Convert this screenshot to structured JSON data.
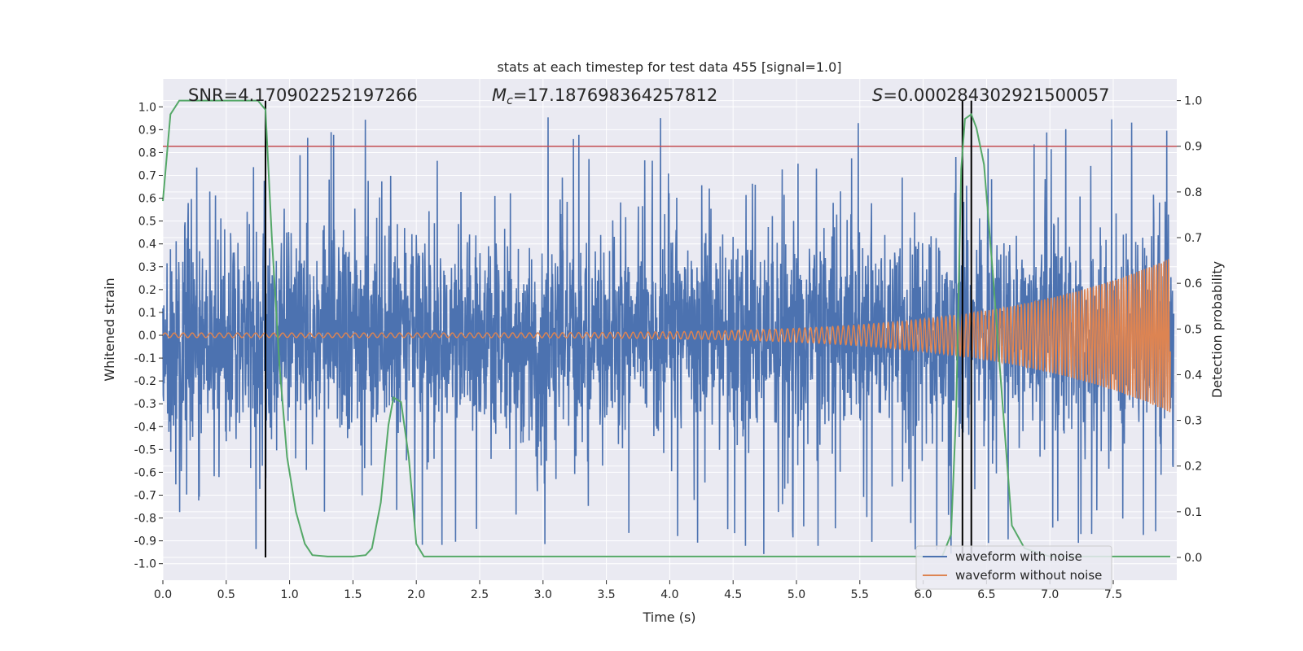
{
  "chart_data": {
    "type": "line",
    "title": "stats at each timestep for test data 455 [signal=1.0]",
    "xlabel": "Time (s)",
    "ylabel": "Whitened strain",
    "y2label": "Detection probability",
    "xlim": [
      0.0,
      8.0
    ],
    "ylim": [
      -1.1,
      1.1
    ],
    "y2lim": [
      -0.05,
      1.05
    ],
    "x_ticks": [
      0.0,
      0.5,
      1.0,
      1.5,
      2.0,
      2.5,
      3.0,
      3.5,
      4.0,
      4.5,
      5.0,
      5.5,
      6.0,
      6.5,
      7.0,
      7.5
    ],
    "x_tick_labels": [
      "0.0",
      "0.5",
      "1.0",
      "1.5",
      "2.0",
      "2.5",
      "3.0",
      "3.5",
      "4.0",
      "4.5",
      "5.0",
      "5.5",
      "6.0",
      "6.5",
      "7.0",
      "7.5"
    ],
    "y_ticks": [
      -1.0,
      -0.9,
      -0.8,
      -0.7,
      -0.6,
      -0.5,
      -0.4,
      -0.3,
      -0.2,
      -0.1,
      0.0,
      0.1,
      0.2,
      0.3,
      0.4,
      0.5,
      0.6,
      0.7,
      0.8,
      0.9,
      1.0
    ],
    "y_tick_labels": [
      "-1.0",
      "-0.9",
      "-0.8",
      "-0.7",
      "-0.6",
      "-0.5",
      "-0.4",
      "-0.3",
      "-0.2",
      "-0.1",
      "0.0",
      "0.1",
      "0.2",
      "0.3",
      "0.4",
      "0.5",
      "0.6",
      "0.7",
      "0.8",
      "0.9",
      "1.0"
    ],
    "y2_ticks": [
      0.0,
      0.1,
      0.2,
      0.3,
      0.4,
      0.5,
      0.6,
      0.7,
      0.8,
      0.9,
      1.0
    ],
    "y2_tick_labels": [
      "0.0",
      "0.1",
      "0.2",
      "0.3",
      "0.4",
      "0.5",
      "0.6",
      "0.7",
      "0.8",
      "0.9",
      "1.0"
    ],
    "grid": true,
    "annotations": {
      "snr_text": "SNR=4.170902252197266",
      "mc_symbol": "M",
      "mc_sub": "c",
      "mc_value": "=17.187698364257812",
      "s_symbol": "S",
      "s_value": "=0.000284302921500057"
    },
    "threshold": {
      "value": 0.9,
      "axis": "y2",
      "color": "#c44e52"
    },
    "vertical_markers": [
      0.81,
      6.31,
      6.38
    ],
    "noise_waveform": {
      "name": "waveform with noise",
      "color": "#4c72b0",
      "sample_step": 0.005,
      "approx_band": [
        -0.5,
        0.5
      ],
      "approx_extremes": [
        -1.0,
        1.0
      ]
    },
    "clean_waveform": {
      "name": "waveform without noise",
      "color": "#dd8452",
      "start_amplitude": 0.01,
      "end_amplitude": 0.35,
      "chirp_end_time": 7.95
    },
    "detection_probability": {
      "name": "detection probability",
      "color": "#55a868",
      "x": [
        0.0,
        0.06,
        0.13,
        0.2,
        0.3,
        0.5,
        0.7,
        0.75,
        0.81,
        0.86,
        0.92,
        0.98,
        1.05,
        1.12,
        1.18,
        1.3,
        1.5,
        1.6,
        1.65,
        1.72,
        1.78,
        1.82,
        1.88,
        1.94,
        2.0,
        2.06,
        2.2,
        3.0,
        4.0,
        5.0,
        6.0,
        6.15,
        6.22,
        6.26,
        6.3,
        6.33,
        6.38,
        6.42,
        6.48,
        6.55,
        6.62,
        6.7,
        6.8,
        7.0,
        7.5,
        7.95
      ],
      "y": [
        0.78,
        0.97,
        1.0,
        1.0,
        1.0,
        1.0,
        1.0,
        1.0,
        0.98,
        0.7,
        0.42,
        0.22,
        0.1,
        0.03,
        0.005,
        0.002,
        0.002,
        0.005,
        0.02,
        0.12,
        0.29,
        0.35,
        0.34,
        0.22,
        0.03,
        0.002,
        0.002,
        0.002,
        0.002,
        0.002,
        0.002,
        0.002,
        0.05,
        0.32,
        0.85,
        0.96,
        0.97,
        0.94,
        0.86,
        0.62,
        0.36,
        0.07,
        0.02,
        0.002,
        0.002,
        0.002
      ]
    },
    "legend": {
      "position": "lower-right",
      "entries": [
        {
          "label": "waveform with noise",
          "color": "#4c72b0"
        },
        {
          "label": "waveform without noise",
          "color": "#dd8452"
        }
      ]
    },
    "colors": {
      "plot_background": "#eaeaf2",
      "grid": "#ffffff",
      "marker": "#000000"
    }
  }
}
